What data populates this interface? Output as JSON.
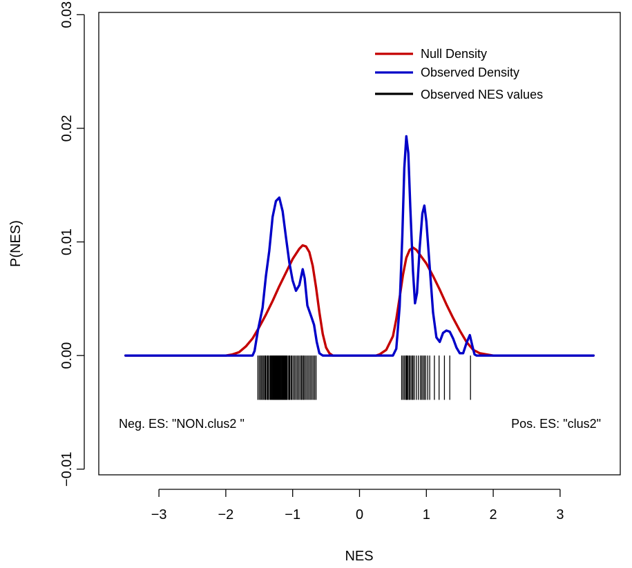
{
  "chart_data": {
    "type": "line",
    "title": "",
    "xlabel": "NES",
    "ylabel": "P(NES)",
    "xlim": [
      -3.9,
      3.9
    ],
    "ylim": [
      -0.0105,
      0.0302
    ],
    "x_ticks": [
      -3,
      -2,
      -1,
      0,
      1,
      2,
      3
    ],
    "x_tick_labels": [
      "−3",
      "−2",
      "−1",
      "0",
      "1",
      "2",
      "3"
    ],
    "y_ticks": [
      -0.01,
      0.0,
      0.01,
      0.02,
      0.03
    ],
    "y_tick_labels": [
      "−0.01",
      "0.00",
      "0.01",
      "0.02",
      "0.03"
    ],
    "legend": {
      "placement": "top-right",
      "entries": [
        {
          "label": "Null Density",
          "color": "#c40000"
        },
        {
          "label": "Observed Density",
          "color": "#0000c8"
        },
        {
          "label": "Observed NES values",
          "color": "#000000"
        }
      ]
    },
    "annotations": {
      "neg": "Neg. ES: \"NON.clus2 \"",
      "pos": "Pos. ES: \"clus2\""
    },
    "series": [
      {
        "name": "Null Density",
        "color": "#c40000",
        "points": [
          [
            -3.5,
            0
          ],
          [
            -2.0,
            0
          ],
          [
            -1.9,
            0.0001
          ],
          [
            -1.8,
            0.0003
          ],
          [
            -1.7,
            0.0008
          ],
          [
            -1.6,
            0.0015
          ],
          [
            -1.5,
            0.0025
          ],
          [
            -1.4,
            0.0036
          ],
          [
            -1.3,
            0.0048
          ],
          [
            -1.2,
            0.0061
          ],
          [
            -1.1,
            0.0073
          ],
          [
            -1.0,
            0.0085
          ],
          [
            -0.9,
            0.0094
          ],
          [
            -0.85,
            0.0097
          ],
          [
            -0.8,
            0.0096
          ],
          [
            -0.75,
            0.0091
          ],
          [
            -0.7,
            0.0079
          ],
          [
            -0.65,
            0.006
          ],
          [
            -0.6,
            0.0038
          ],
          [
            -0.55,
            0.0019
          ],
          [
            -0.5,
            0.0007
          ],
          [
            -0.45,
            0.0002
          ],
          [
            -0.4,
            0
          ],
          [
            0.25,
            0
          ],
          [
            0.3,
            0.0001
          ],
          [
            0.4,
            0.0005
          ],
          [
            0.5,
            0.0017
          ],
          [
            0.55,
            0.0032
          ],
          [
            0.6,
            0.0051
          ],
          [
            0.65,
            0.0071
          ],
          [
            0.7,
            0.0086
          ],
          [
            0.75,
            0.0093
          ],
          [
            0.8,
            0.0095
          ],
          [
            0.85,
            0.0093
          ],
          [
            0.9,
            0.0089
          ],
          [
            1.0,
            0.0081
          ],
          [
            1.1,
            0.007
          ],
          [
            1.2,
            0.0058
          ],
          [
            1.3,
            0.0045
          ],
          [
            1.4,
            0.0033
          ],
          [
            1.5,
            0.0022
          ],
          [
            1.6,
            0.0012
          ],
          [
            1.7,
            0.0005
          ],
          [
            1.8,
            0.0002
          ],
          [
            1.9,
            0.0001
          ],
          [
            2.0,
            0
          ],
          [
            3.5,
            0
          ]
        ]
      },
      {
        "name": "Observed Density",
        "color": "#0000c8",
        "points": [
          [
            -3.5,
            0
          ],
          [
            -1.6,
            0
          ],
          [
            -1.57,
            0.0004
          ],
          [
            -1.52,
            0.0022
          ],
          [
            -1.45,
            0.0042
          ],
          [
            -1.4,
            0.007
          ],
          [
            -1.35,
            0.0092
          ],
          [
            -1.3,
            0.0122
          ],
          [
            -1.25,
            0.0136
          ],
          [
            -1.2,
            0.0139
          ],
          [
            -1.15,
            0.0127
          ],
          [
            -1.1,
            0.0104
          ],
          [
            -1.05,
            0.0082
          ],
          [
            -1.0,
            0.0066
          ],
          [
            -0.95,
            0.0057
          ],
          [
            -0.9,
            0.0062
          ],
          [
            -0.85,
            0.0076
          ],
          [
            -0.82,
            0.0068
          ],
          [
            -0.78,
            0.0044
          ],
          [
            -0.72,
            0.0034
          ],
          [
            -0.68,
            0.0027
          ],
          [
            -0.64,
            0.0012
          ],
          [
            -0.6,
            0.0002
          ],
          [
            -0.55,
            0
          ],
          [
            0.5,
            0
          ],
          [
            0.55,
            0.0006
          ],
          [
            0.6,
            0.0043
          ],
          [
            0.64,
            0.0105
          ],
          [
            0.67,
            0.0165
          ],
          [
            0.7,
            0.0193
          ],
          [
            0.73,
            0.0178
          ],
          [
            0.76,
            0.013
          ],
          [
            0.8,
            0.0074
          ],
          [
            0.83,
            0.0046
          ],
          [
            0.86,
            0.0055
          ],
          [
            0.9,
            0.0095
          ],
          [
            0.94,
            0.0125
          ],
          [
            0.97,
            0.0132
          ],
          [
            1.0,
            0.0118
          ],
          [
            1.05,
            0.0078
          ],
          [
            1.1,
            0.0038
          ],
          [
            1.15,
            0.0016
          ],
          [
            1.2,
            0.0012
          ],
          [
            1.25,
            0.002
          ],
          [
            1.3,
            0.0022
          ],
          [
            1.35,
            0.0021
          ],
          [
            1.4,
            0.0015
          ],
          [
            1.45,
            0.0007
          ],
          [
            1.5,
            0.0002
          ],
          [
            1.55,
            0.0002
          ],
          [
            1.6,
            0.0011
          ],
          [
            1.65,
            0.0018
          ],
          [
            1.69,
            0.0008
          ],
          [
            1.72,
            0.0001
          ],
          [
            1.75,
            0
          ],
          [
            3.5,
            0
          ]
        ]
      }
    ],
    "rug": {
      "name": "Observed NES values",
      "color": "#000000",
      "values": [
        -1.52,
        -1.5,
        -1.48,
        -1.47,
        -1.45,
        -1.44,
        -1.42,
        -1.41,
        -1.4,
        -1.38,
        -1.37,
        -1.36,
        -1.34,
        -1.33,
        -1.32,
        -1.31,
        -1.3,
        -1.29,
        -1.28,
        -1.27,
        -1.26,
        -1.25,
        -1.24,
        -1.23,
        -1.22,
        -1.21,
        -1.2,
        -1.19,
        -1.18,
        -1.17,
        -1.16,
        -1.15,
        -1.14,
        -1.13,
        -1.12,
        -1.11,
        -1.1,
        -1.09,
        -1.08,
        -1.06,
        -1.05,
        -1.04,
        -1.02,
        -1.01,
        -0.99,
        -0.97,
        -0.95,
        -0.93,
        -0.91,
        -0.89,
        -0.87,
        -0.86,
        -0.84,
        -0.83,
        -0.81,
        -0.79,
        -0.77,
        -0.75,
        -0.73,
        -0.71,
        -0.69,
        -0.67,
        -0.65,
        0.63,
        0.65,
        0.67,
        0.69,
        0.7,
        0.71,
        0.72,
        0.74,
        0.75,
        0.77,
        0.79,
        0.8,
        0.82,
        0.85,
        0.88,
        0.91,
        0.93,
        0.95,
        0.97,
        0.99,
        1.02,
        1.05,
        1.12,
        1.19,
        1.27,
        1.35,
        1.66
      ]
    }
  }
}
